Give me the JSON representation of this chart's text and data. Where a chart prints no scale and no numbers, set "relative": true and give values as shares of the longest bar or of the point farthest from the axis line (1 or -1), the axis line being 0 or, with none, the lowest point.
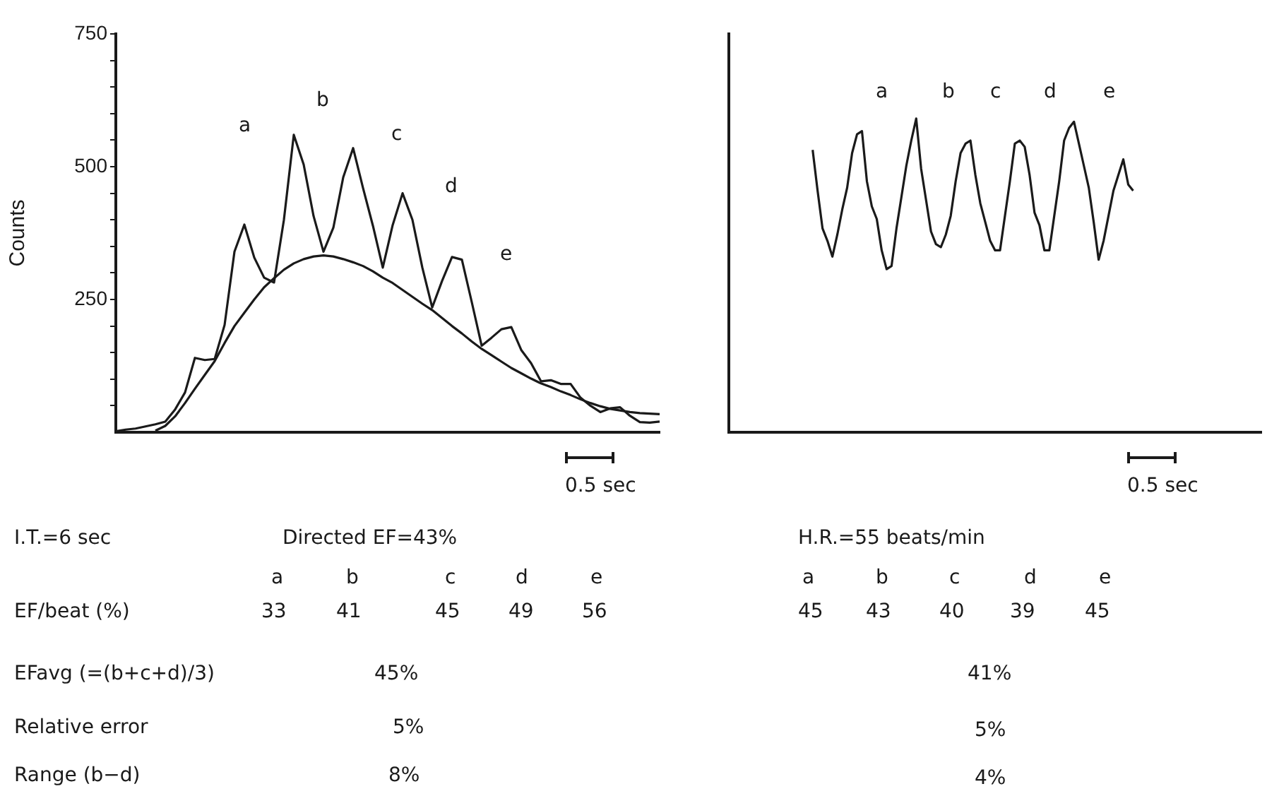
{
  "chart_data": [
    {
      "type": "line",
      "ylabel": "Counts",
      "categories": [
        null,
        null,
        null,
        null,
        null,
        null,
        null,
        null,
        null,
        null,
        null,
        null,
        null,
        null,
        null,
        null,
        null,
        null,
        null,
        null,
        null,
        null,
        null,
        null,
        null,
        null,
        null,
        null,
        null,
        null,
        null,
        null,
        null,
        null,
        null,
        null,
        null,
        null,
        null,
        null,
        null,
        null,
        null,
        null,
        null,
        null,
        null,
        null,
        null,
        null,
        null,
        null,
        null,
        null,
        null,
        null
      ],
      "ylim": [
        0,
        750
      ],
      "yticks": [
        {
          "value": 50,
          "label": null
        },
        {
          "value": 100,
          "label": null
        },
        {
          "value": 150,
          "label": null
        },
        {
          "value": 200,
          "label": null
        },
        250,
        {
          "value": 300,
          "label": null
        },
        {
          "value": 350,
          "label": null
        },
        {
          "value": 400,
          "label": null
        },
        {
          "value": 450,
          "label": null
        },
        500,
        {
          "value": 550,
          "label": null
        },
        {
          "value": 600,
          "label": null
        },
        {
          "value": 650,
          "label": null
        },
        {
          "value": 700,
          "label": null
        },
        750
      ],
      "tick_labels": "y",
      "grid": false,
      "legend": false,
      "marker": "none",
      "line_style": "solid",
      "series": [
        {
          "color": "#1a1a1a",
          "values": [
            2,
            5,
            7,
            11,
            15,
            20,
            43,
            75,
            140,
            136,
            138,
            202,
            340,
            391,
            329,
            291,
            282,
            400,
            560,
            504,
            407,
            340,
            385,
            480,
            535,
            460,
            389,
            310,
            390,
            450,
            400,
            310,
            235,
            285,
            330,
            325,
            245,
            163,
            178,
            194,
            198,
            155,
            130,
            96,
            98,
            91,
            91,
            65,
            50,
            38,
            45,
            47,
            31,
            19,
            18,
            20
          ]
        },
        {
          "color": "#1a1a1a",
          "values": [
            null,
            null,
            null,
            null,
            3,
            12,
            30,
            55,
            82,
            108,
            134,
            168,
            200,
            225,
            250,
            273,
            290,
            306,
            318,
            326,
            331,
            333,
            331,
            326,
            320,
            313,
            303,
            291,
            281,
            268,
            255,
            242,
            230,
            215,
            200,
            186,
            171,
            157,
            145,
            133,
            121,
            111,
            101,
            92,
            85,
            77,
            70,
            62,
            55,
            49,
            44,
            41,
            38,
            36,
            35,
            34
          ]
        }
      ],
      "annotations": [
        "a",
        "b",
        "c",
        "d",
        "e",
        "0.5 sec",
        "I.T.=6 sec",
        "Directed EF=43%",
        "a",
        "b",
        "c",
        "d",
        "e",
        "EF/beat (%)",
        "33",
        "41",
        "45",
        "49",
        "56",
        "EFavg (=(b+c+d)/3)",
        "45%",
        "Relative error",
        "5%",
        "Range (b−d)",
        "8%"
      ]
    },
    {
      "type": "line",
      "relative": true,
      "categories": [
        null,
        null,
        null,
        null,
        null,
        null,
        null,
        null,
        null,
        null,
        null,
        null,
        null,
        null,
        null,
        null,
        null,
        null,
        null,
        null,
        null,
        null,
        null,
        null,
        null,
        null,
        null,
        null,
        null,
        null,
        null,
        null,
        null,
        null,
        null,
        null,
        null,
        null,
        null,
        null,
        null,
        null,
        null,
        null,
        null,
        null,
        null,
        null,
        null,
        null,
        null,
        null,
        null,
        null,
        null,
        null,
        null,
        null,
        null,
        null,
        null,
        null,
        null,
        null,
        null,
        null,
        null,
        null,
        null,
        null,
        null,
        null,
        null,
        null,
        null,
        null,
        null,
        null,
        null,
        null,
        null,
        null,
        null,
        null,
        null,
        null,
        null,
        null,
        null,
        null,
        null,
        null,
        null,
        null,
        null,
        null,
        null,
        null,
        null,
        null,
        null,
        null,
        null,
        null,
        null,
        null,
        null,
        null,
        null
      ],
      "tick_labels": false,
      "grid": false,
      "legend": false,
      "marker": "none",
      "line_style": "solid",
      "series": [
        {
          "color": "#1a1a1a",
          "values": [
            null,
            null,
            null,
            null,
            null,
            null,
            null,
            null,
            null,
            null,
            null,
            null,
            null,
            null,
            null,
            null,
            null,
            0.9,
            0.77,
            0.65,
            0.61,
            0.56,
            0.63,
            0.71,
            0.78,
            0.89,
            0.95,
            0.96,
            0.8,
            0.72,
            0.68,
            0.58,
            0.52,
            0.53,
            0.65,
            0.75,
            0.85,
            0.93,
            1,
            0.84,
            0.74,
            0.64,
            0.6,
            0.59,
            0.63,
            0.69,
            0.8,
            0.89,
            0.92,
            0.93,
            0.82,
            0.73,
            0.67,
            0.61,
            0.58,
            0.58,
            0.69,
            0.8,
            0.92,
            0.93,
            0.91,
            0.82,
            0.7,
            0.66,
            0.58,
            0.58,
            0.69,
            0.8,
            0.93,
            0.97,
            0.99,
            0.92,
            0.85,
            0.78,
            0.67,
            0.55,
            0.61,
            0.69,
            0.77,
            0.82,
            0.87,
            0.79,
            0.77,
            null,
            null,
            null,
            null,
            null,
            null,
            null,
            null,
            null,
            null,
            null,
            null,
            null,
            null,
            null,
            null,
            null,
            null,
            null,
            null,
            null,
            null,
            null,
            null,
            null,
            null
          ]
        }
      ],
      "annotations": [
        "a",
        "b",
        "c",
        "d",
        "e",
        "0.5 sec",
        "H.R.=55 beats/min",
        "a",
        "b",
        "c",
        "d",
        "e",
        "45",
        "43",
        "40",
        "39",
        "45",
        "41%",
        "5%",
        "4%"
      ]
    }
  ]
}
